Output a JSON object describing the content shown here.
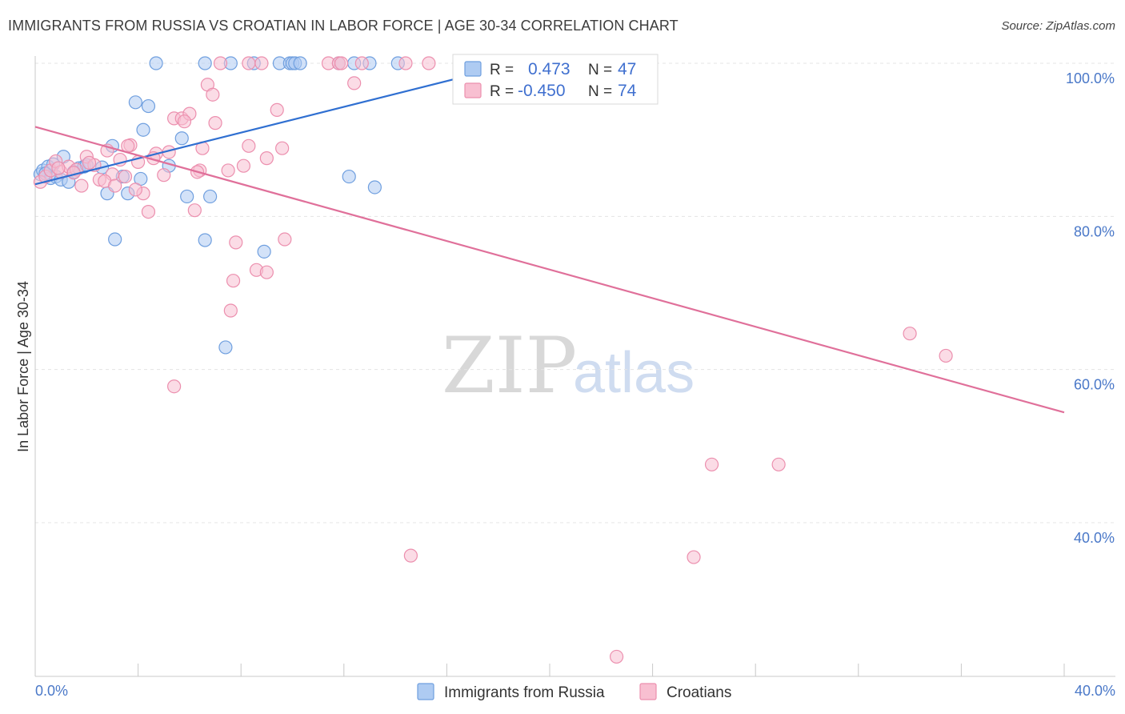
{
  "header": {
    "title": "IMMIGRANTS FROM RUSSIA VS CROATIAN IN LABOR FORCE | AGE 30-34 CORRELATION CHART",
    "source": "Source: ZipAtlas.com"
  },
  "legend": {
    "r_label": "R =",
    "n_label": "N =",
    "rows": [
      {
        "r": "0.473",
        "n": "47"
      },
      {
        "r": "-0.450",
        "n": "74"
      }
    ]
  },
  "watermark": {
    "zip": "ZIP",
    "atlas": "atlas"
  },
  "colors": {
    "russia_fill": "#aecbf2",
    "russia_stroke": "#6f9fdf",
    "russia_line": "#2f6fd1",
    "croatia_fill": "#f8bfd1",
    "croatia_stroke": "#ec8fae",
    "croatia_line": "#e0709a"
  },
  "chart_data": {
    "type": "scatter",
    "title": "IMMIGRANTS FROM RUSSIA VS CROATIAN IN LABOR FORCE | AGE 30-34 CORRELATION CHART",
    "xlabel": "",
    "ylabel": "In Labor Force | Age 30-34",
    "xlim": [
      0,
      40
    ],
    "ylim": [
      22,
      102
    ],
    "x_tick_labels": [
      "0.0%",
      "40.0%"
    ],
    "y_ticks": [
      40,
      60,
      80,
      100
    ],
    "y_tick_labels": [
      "40.0%",
      "60.0%",
      "80.0%",
      "100.0%"
    ],
    "series": [
      {
        "name": "Immigrants from Russia",
        "r": 0.473,
        "n": 47,
        "trend": {
          "x": [
            0,
            19.0
          ],
          "y": [
            84.2,
            100.2
          ]
        },
        "points": [
          [
            0.2,
            85.5
          ],
          [
            0.3,
            86
          ],
          [
            0.5,
            86.5
          ],
          [
            0.6,
            85
          ],
          [
            0.7,
            86.8
          ],
          [
            0.8,
            85.2
          ],
          [
            1.0,
            84.8
          ],
          [
            1.1,
            87.8
          ],
          [
            1.3,
            84.5
          ],
          [
            1.5,
            85.8
          ],
          [
            1.7,
            86.3
          ],
          [
            1.9,
            86.5
          ],
          [
            2.0,
            86.7
          ],
          [
            2.6,
            86.4
          ],
          [
            2.8,
            83.0
          ],
          [
            3.0,
            89.2
          ],
          [
            3.1,
            77.0
          ],
          [
            3.4,
            85.2
          ],
          [
            3.6,
            83.0
          ],
          [
            3.9,
            94.9
          ],
          [
            4.2,
            91.3
          ],
          [
            4.4,
            94.4
          ],
          [
            4.1,
            84.9
          ],
          [
            5.2,
            86.6
          ],
          [
            5.7,
            90.2
          ],
          [
            5.9,
            82.6
          ],
          [
            6.6,
            76.9
          ],
          [
            6.8,
            82.6
          ],
          [
            7.4,
            62.9
          ],
          [
            8.9,
            75.4
          ],
          [
            4.7,
            100
          ],
          [
            6.6,
            100
          ],
          [
            8.5,
            100
          ],
          [
            9.5,
            100
          ],
          [
            9.9,
            100
          ],
          [
            10.0,
            100
          ],
          [
            10.1,
            100
          ],
          [
            11.8,
            100
          ],
          [
            12.4,
            100
          ],
          [
            13.0,
            100
          ],
          [
            14.1,
            100
          ],
          [
            10.3,
            100
          ],
          [
            7.6,
            100
          ],
          [
            12.2,
            85.2
          ],
          [
            13.2,
            83.8
          ],
          [
            18.3,
            100
          ],
          [
            0.4,
            85.6
          ]
        ]
      },
      {
        "name": "Croatians",
        "r": -0.45,
        "n": 74,
        "trend": {
          "x": [
            0,
            40
          ],
          "y": [
            91.7,
            54.4
          ]
        },
        "points": [
          [
            0.2,
            84.5
          ],
          [
            0.4,
            85.2
          ],
          [
            0.6,
            86
          ],
          [
            0.8,
            87.2
          ],
          [
            1.0,
            85.8
          ],
          [
            1.3,
            86.5
          ],
          [
            1.6,
            86.1
          ],
          [
            1.8,
            84.0
          ],
          [
            2.0,
            87.8
          ],
          [
            2.3,
            86.7
          ],
          [
            2.5,
            84.8
          ],
          [
            2.8,
            88.6
          ],
          [
            3.0,
            85.5
          ],
          [
            3.3,
            87.4
          ],
          [
            3.5,
            85.2
          ],
          [
            3.7,
            89.3
          ],
          [
            4.0,
            87.1
          ],
          [
            4.2,
            83.0
          ],
          [
            4.4,
            80.6
          ],
          [
            4.7,
            88.2
          ],
          [
            5.0,
            85.4
          ],
          [
            5.2,
            88.4
          ],
          [
            5.4,
            92.8
          ],
          [
            5.7,
            92.8
          ],
          [
            6.0,
            93.4
          ],
          [
            6.2,
            80.8
          ],
          [
            6.4,
            86.0
          ],
          [
            6.5,
            88.9
          ],
          [
            6.7,
            97.2
          ],
          [
            6.9,
            95.9
          ],
          [
            7.0,
            92.2
          ],
          [
            7.5,
            86.0
          ],
          [
            7.8,
            76.6
          ],
          [
            8.1,
            86.6
          ],
          [
            8.3,
            89.2
          ],
          [
            8.6,
            73.0
          ],
          [
            9.0,
            87.6
          ],
          [
            9.4,
            93.9
          ],
          [
            9.6,
            88.9
          ],
          [
            9.7,
            77.0
          ],
          [
            7.7,
            71.6
          ],
          [
            7.6,
            67.7
          ],
          [
            9.0,
            72.7
          ],
          [
            5.4,
            57.8
          ],
          [
            34.0,
            64.7
          ],
          [
            35.4,
            61.8
          ],
          [
            26.3,
            47.6
          ],
          [
            28.9,
            47.6
          ],
          [
            14.6,
            35.7
          ],
          [
            25.6,
            35.5
          ],
          [
            22.6,
            22.5
          ],
          [
            12.4,
            97.4
          ],
          [
            8.3,
            100
          ],
          [
            8.8,
            100
          ],
          [
            7.2,
            100
          ],
          [
            11.4,
            100
          ],
          [
            11.8,
            100
          ],
          [
            11.9,
            100
          ],
          [
            12.7,
            100
          ],
          [
            14.4,
            100
          ],
          [
            15.3,
            100
          ],
          [
            16.5,
            100
          ],
          [
            17.6,
            100
          ],
          [
            22.1,
            100
          ],
          [
            5.8,
            92.4
          ],
          [
            3.6,
            89.2
          ],
          [
            2.7,
            84.6
          ],
          [
            1.5,
            85.7
          ],
          [
            0.9,
            86.3
          ],
          [
            3.1,
            84.0
          ],
          [
            4.6,
            87.6
          ],
          [
            6.3,
            85.8
          ],
          [
            2.1,
            87.0
          ],
          [
            3.9,
            83.5
          ]
        ]
      }
    ]
  },
  "bottom_legend": {
    "items": [
      {
        "label": "Immigrants from Russia"
      },
      {
        "label": "Croatians"
      }
    ]
  }
}
